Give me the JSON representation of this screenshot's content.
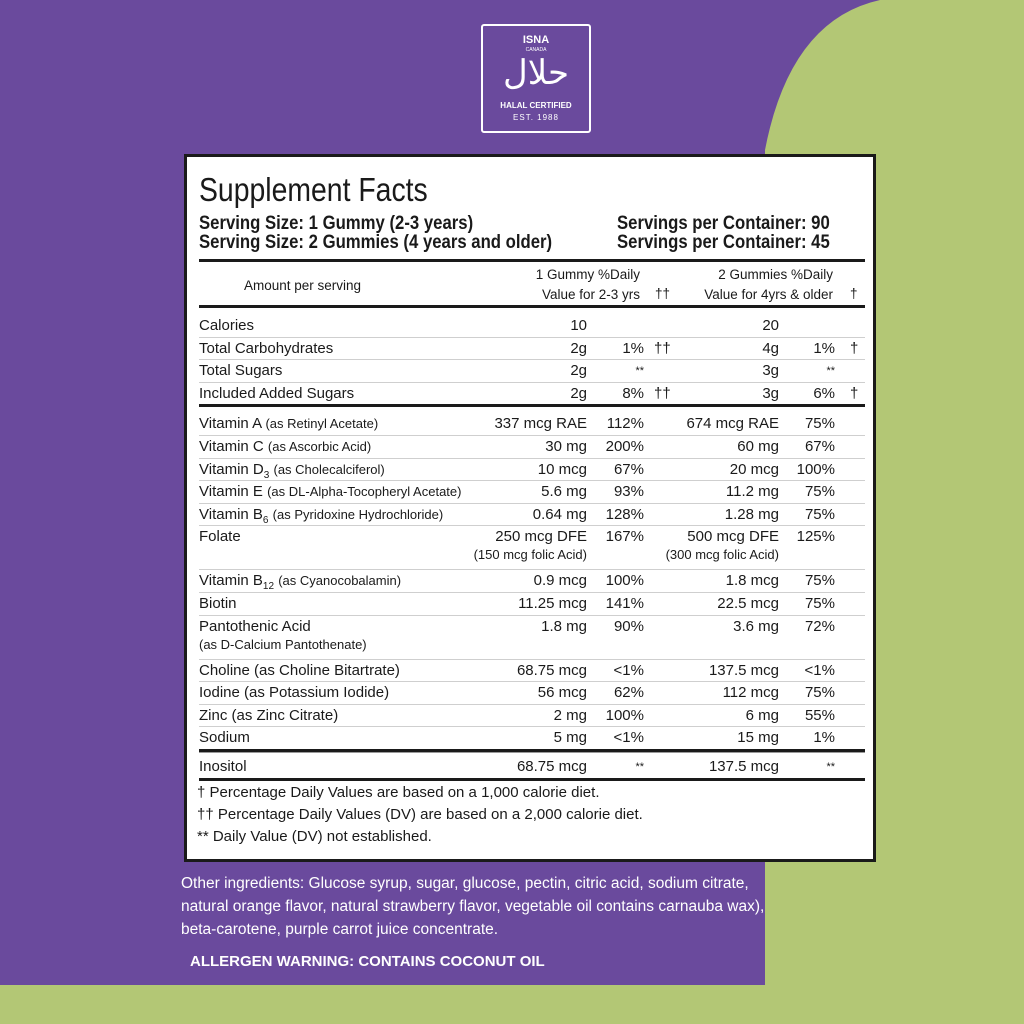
{
  "badge": {
    "brand": "ISNA",
    "sub": "CANADA",
    "arabic": "حلال",
    "cert": "HALAL CERTIFIED",
    "est": "EST. 1988"
  },
  "facts": {
    "title": "Supplement Facts",
    "serving": [
      [
        "Serving Size: 1 Gummy (2-3 years)",
        "Servings per Container: 90"
      ],
      [
        "Serving Size: 2 Gummies (4 years and older)",
        "Servings per Container: 45"
      ]
    ],
    "header": {
      "amount": "Amount per serving",
      "col1": "1 Gummy %Daily",
      "col1b": "Value for 2-3 yrs",
      "mark1": "††",
      "col2": "2 Gummies %Daily",
      "col2b": "Value for 4yrs & older",
      "mark2": "†"
    },
    "groups": [
      [
        {
          "name": "Calories",
          "a1": "10",
          "a2": "20"
        },
        {
          "name": "Total Carbohydrates",
          "a1": "2g",
          "d1": "1%",
          "m1": "††",
          "a2": "4g",
          "d2": "1%",
          "m2": "†"
        },
        {
          "name": "Total Sugars",
          "a1": "2g",
          "d1": "**",
          "a2": "3g",
          "d2": "**"
        },
        {
          "name": "Included Added Sugars",
          "a1": "2g",
          "d1": "8%",
          "m1": "††",
          "a2": "3g",
          "d2": "6%",
          "m2": "†"
        }
      ],
      [
        {
          "name": "Vitamin A",
          "detail": "(as Retinyl Acetate)",
          "a1": "337 mcg RAE",
          "d1": "112%",
          "a2": "674 mcg RAE",
          "d2": "75%"
        },
        {
          "name": "Vitamin C",
          "detail": "(as Ascorbic Acid)",
          "a1": "30 mg",
          "d1": "200%",
          "a2": "60 mg",
          "d2": "67%"
        },
        {
          "name": "Vitamin D",
          "sub": "3",
          "detail": "(as Cholecalciferol)",
          "a1": "10 mcg",
          "d1": "67%",
          "a2": "20 mcg",
          "d2": "100%"
        },
        {
          "name": "Vitamin E",
          "detail": "(as DL-Alpha-Tocopheryl Acetate)",
          "a1": "5.6 mg",
          "d1": "93%",
          "a2": "11.2 mg",
          "d2": "75%"
        },
        {
          "name": "Vitamin B",
          "sub": "6",
          "detail": "(as Pyridoxine Hydrochloride)",
          "a1": "0.64 mg",
          "d1": "128%",
          "a2": "1.28 mg",
          "d2": "75%"
        },
        {
          "name": "Folate",
          "a1": "250 mcg DFE",
          "a1note": "(150 mcg folic Acid)",
          "d1": "167%",
          "a2": "500 mcg DFE",
          "a2note": "(300 mcg folic Acid)",
          "d2": "125%"
        },
        {
          "name": "Vitamin B",
          "sub": "12",
          "detail": "(as Cyanocobalamin)",
          "a1": "0.9 mcg",
          "d1": "100%",
          "a2": "1.8 mcg",
          "d2": "75%"
        },
        {
          "name": "Biotin",
          "a1": "11.25 mcg",
          "d1": "141%",
          "a2": "22.5 mcg",
          "d2": "75%"
        },
        {
          "name": "Pantothenic Acid",
          "below": "(as D-Calcium Pantothenate)",
          "a1": "1.8 mg",
          "d1": "90%",
          "a2": "3.6 mg",
          "d2": "72%"
        },
        {
          "name": "Choline (as Choline Bitartrate)",
          "a1": "68.75 mcg",
          "d1": "<1%",
          "a2": "137.5 mcg",
          "d2": "<1%"
        },
        {
          "name": "Iodine (as Potassium Iodide)",
          "a1": "56 mcg",
          "d1": "62%",
          "a2": "112 mcg",
          "d2": "75%"
        },
        {
          "name": "Zinc (as Zinc Citrate)",
          "a1": "2  mg",
          "d1": "100%",
          "a2": "6 mg",
          "d2": "55%"
        },
        {
          "name": "Sodium",
          "a1": "5 mg",
          "d1": "<1%",
          "a2": "15 mg",
          "d2": "1%"
        }
      ],
      [
        {
          "name": "Inositol",
          "a1": "68.75 mcg",
          "d1": "**",
          "a2": "137.5 mcg",
          "d2": "**"
        }
      ]
    ],
    "footnotes": [
      "† Percentage Daily Values are based on a 1,000 calorie diet.",
      "†† Percentage Daily Values (DV) are based on a 2,000 calorie diet.",
      "** Daily Value (DV) not established."
    ]
  },
  "ingredients": "Other ingredients: Glucose syrup, sugar, glucose, pectin, citric acid, sodium citrate, natural orange flavor, natural strawberry flavor,  vegetable oil contains carnauba wax), beta-carotene, purple carrot juice concentrate.",
  "allergen": "ALLERGEN WARNING: CONTAINS COCONUT OIL"
}
